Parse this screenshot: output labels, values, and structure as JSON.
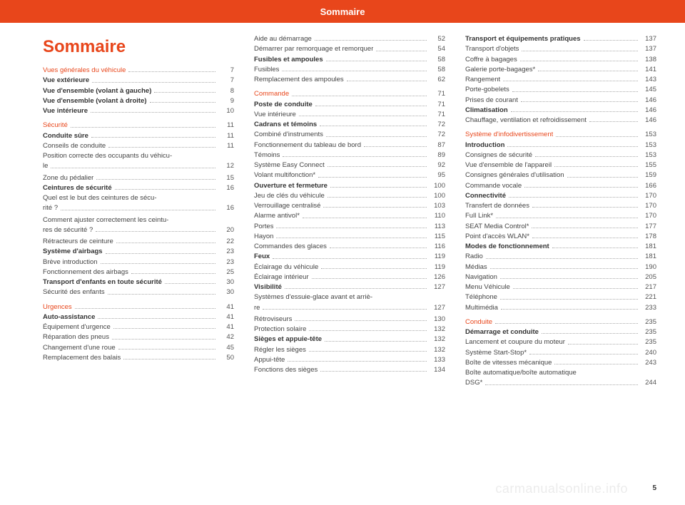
{
  "header": {
    "title": "Sommaire"
  },
  "main_title": "Sommaire",
  "page_number": "5",
  "watermark": "carmanualsonline.info",
  "columns": [
    [
      {
        "type": "section",
        "label": "Vues générales du véhicule",
        "page": "7"
      },
      {
        "type": "bold",
        "label": "Vue extérieure",
        "page": "7"
      },
      {
        "type": "bold",
        "label": "Vue d'ensemble (volant à gauche)",
        "page": "8"
      },
      {
        "type": "bold",
        "label": "Vue d'ensemble (volant à droite)",
        "page": "9"
      },
      {
        "type": "bold",
        "label": "Vue intérieure",
        "page": "10"
      },
      {
        "type": "section",
        "label": "Sécurité",
        "page": "11"
      },
      {
        "type": "bold",
        "label": "Conduite sûre",
        "page": "11"
      },
      {
        "type": "norm",
        "label": "Conseils de conduite",
        "page": "11"
      },
      {
        "type": "wrap",
        "label1": "Position correcte des occupants du véhicu-",
        "label2": "le",
        "page": "12"
      },
      {
        "type": "norm",
        "label": "Zone du pédalier",
        "page": "15"
      },
      {
        "type": "bold",
        "label": "Ceintures de sécurité",
        "page": "16"
      },
      {
        "type": "wrap",
        "label1": "Quel est le but des ceintures de sécu-",
        "label2": "rité ?",
        "page": "16"
      },
      {
        "type": "wrap",
        "label1": "Comment ajuster correctement les ceintu-",
        "label2": "res de sécurité ?",
        "page": "20"
      },
      {
        "type": "norm",
        "label": "Rétracteurs de ceinture",
        "page": "22"
      },
      {
        "type": "bold",
        "label": "Système d'airbags",
        "page": "23"
      },
      {
        "type": "norm",
        "label": "Brève introduction",
        "page": "23"
      },
      {
        "type": "norm",
        "label": "Fonctionnement des airbags",
        "page": "25"
      },
      {
        "type": "bold",
        "label": "Transport d'enfants en toute sécurité",
        "page": "30"
      },
      {
        "type": "norm",
        "label": "Sécurité des enfants",
        "page": "30"
      },
      {
        "type": "section",
        "label": "Urgences",
        "page": "41"
      },
      {
        "type": "bold",
        "label": "Auto-assistance",
        "page": "41"
      },
      {
        "type": "norm",
        "label": "Équipement d'urgence",
        "page": "41"
      },
      {
        "type": "norm",
        "label": "Réparation des pneus",
        "page": "42"
      },
      {
        "type": "norm",
        "label": "Changement d'une roue",
        "page": "45"
      },
      {
        "type": "norm",
        "label": "Remplacement des balais",
        "page": "50"
      }
    ],
    [
      {
        "type": "norm",
        "label": "Aide au démarrage",
        "page": "52"
      },
      {
        "type": "norm",
        "label": "Démarrer par remorquage et remorquer",
        "page": "54"
      },
      {
        "type": "bold",
        "label": "Fusibles et ampoules",
        "page": "58"
      },
      {
        "type": "norm",
        "label": "Fusibles",
        "page": "58"
      },
      {
        "type": "norm",
        "label": "Remplacement des ampoules",
        "page": "62"
      },
      {
        "type": "section",
        "label": "Commande",
        "page": "71"
      },
      {
        "type": "bold",
        "label": "Poste de conduite",
        "page": "71"
      },
      {
        "type": "norm",
        "label": "Vue intérieure",
        "page": "71"
      },
      {
        "type": "bold",
        "label": "Cadrans et témoins",
        "page": "72"
      },
      {
        "type": "norm",
        "label": "Combiné d'instruments",
        "page": "72"
      },
      {
        "type": "norm",
        "label": "Fonctionnement du tableau de bord",
        "page": "87"
      },
      {
        "type": "norm",
        "label": "Témoins",
        "page": "89"
      },
      {
        "type": "norm",
        "label": "Système Easy Connect",
        "page": "92"
      },
      {
        "type": "norm",
        "label": "Volant multifonction*",
        "page": "95"
      },
      {
        "type": "bold",
        "label": "Ouverture et fermeture",
        "page": "100"
      },
      {
        "type": "norm",
        "label": "Jeu de clés du véhicule",
        "page": "100"
      },
      {
        "type": "norm",
        "label": "Verrouillage centralisé",
        "page": "103"
      },
      {
        "type": "norm",
        "label": "Alarme antivol*",
        "page": "110"
      },
      {
        "type": "norm",
        "label": "Portes",
        "page": "113"
      },
      {
        "type": "norm",
        "label": "Hayon",
        "page": "115"
      },
      {
        "type": "norm",
        "label": "Commandes des glaces",
        "page": "116"
      },
      {
        "type": "bold",
        "label": "Feux",
        "page": "119"
      },
      {
        "type": "norm",
        "label": "Éclairage du véhicule",
        "page": "119"
      },
      {
        "type": "norm",
        "label": "Éclairage intérieur",
        "page": "126"
      },
      {
        "type": "bold",
        "label": "Visibilité",
        "page": "127"
      },
      {
        "type": "wrap",
        "label1": "Systèmes d'essuie-glace avant et arriè-",
        "label2": "re",
        "page": "127"
      },
      {
        "type": "norm",
        "label": "Rétroviseurs",
        "page": "130"
      },
      {
        "type": "norm",
        "label": "Protection solaire",
        "page": "132"
      },
      {
        "type": "bold",
        "label": "Sièges et appuie-tête",
        "page": "132"
      },
      {
        "type": "norm",
        "label": "Régler les sièges",
        "page": "132"
      },
      {
        "type": "norm",
        "label": "Appui-tête",
        "page": "133"
      },
      {
        "type": "norm",
        "label": "Fonctions des sièges",
        "page": "134"
      }
    ],
    [
      {
        "type": "bold",
        "label": "Transport et équipements pratiques",
        "page": "137"
      },
      {
        "type": "norm",
        "label": "Transport d'objets",
        "page": "137"
      },
      {
        "type": "norm",
        "label": "Coffre à bagages",
        "page": "138"
      },
      {
        "type": "norm",
        "label": "Galerie porte-bagages*",
        "page": "141"
      },
      {
        "type": "norm",
        "label": "Rangement",
        "page": "143"
      },
      {
        "type": "norm",
        "label": "Porte-gobelets",
        "page": "145"
      },
      {
        "type": "norm",
        "label": "Prises de courant",
        "page": "146"
      },
      {
        "type": "bold",
        "label": "Climatisation",
        "page": "146"
      },
      {
        "type": "norm",
        "label": "Chauffage, ventilation et refroidissement",
        "page": "146"
      },
      {
        "type": "section",
        "label": "Système d'infodivertissement",
        "page": "153"
      },
      {
        "type": "bold",
        "label": "Introduction",
        "page": "153"
      },
      {
        "type": "norm",
        "label": "Consignes de sécurité",
        "page": "153"
      },
      {
        "type": "norm",
        "label": "Vue d'ensemble de l'appareil",
        "page": "155"
      },
      {
        "type": "norm",
        "label": "Consignes générales d'utilisation",
        "page": "159"
      },
      {
        "type": "norm",
        "label": "Commande vocale",
        "page": "166"
      },
      {
        "type": "bold",
        "label": "Connectivité",
        "page": "170"
      },
      {
        "type": "norm",
        "label": "Transfert de données",
        "page": "170"
      },
      {
        "type": "norm",
        "label": "Full Link*",
        "page": "170"
      },
      {
        "type": "norm",
        "label": "SEAT Media Control*",
        "page": "177"
      },
      {
        "type": "norm",
        "label": "Point d'accès WLAN*",
        "page": "178"
      },
      {
        "type": "bold",
        "label": "Modes de fonctionnement",
        "page": "181"
      },
      {
        "type": "norm",
        "label": "Radio",
        "page": "181"
      },
      {
        "type": "norm",
        "label": "Médias",
        "page": "190"
      },
      {
        "type": "norm",
        "label": "Navigation",
        "page": "205"
      },
      {
        "type": "norm",
        "label": "Menu Véhicule",
        "page": "217"
      },
      {
        "type": "norm",
        "label": "Téléphone",
        "page": "221"
      },
      {
        "type": "norm",
        "label": "Multimédia",
        "page": "233"
      },
      {
        "type": "section",
        "label": "Conduite",
        "page": "235"
      },
      {
        "type": "bold",
        "label": "Démarrage et conduite",
        "page": "235"
      },
      {
        "type": "norm",
        "label": "Lancement et coupure du moteur",
        "page": "235"
      },
      {
        "type": "norm",
        "label": "Système Start-Stop*",
        "page": "240"
      },
      {
        "type": "norm",
        "label": "Boîte de vitesses mécanique",
        "page": "243"
      },
      {
        "type": "wrap",
        "label1": "Boîte automatique/boîte automatique",
        "label2": "DSG*",
        "page": "244"
      }
    ]
  ]
}
